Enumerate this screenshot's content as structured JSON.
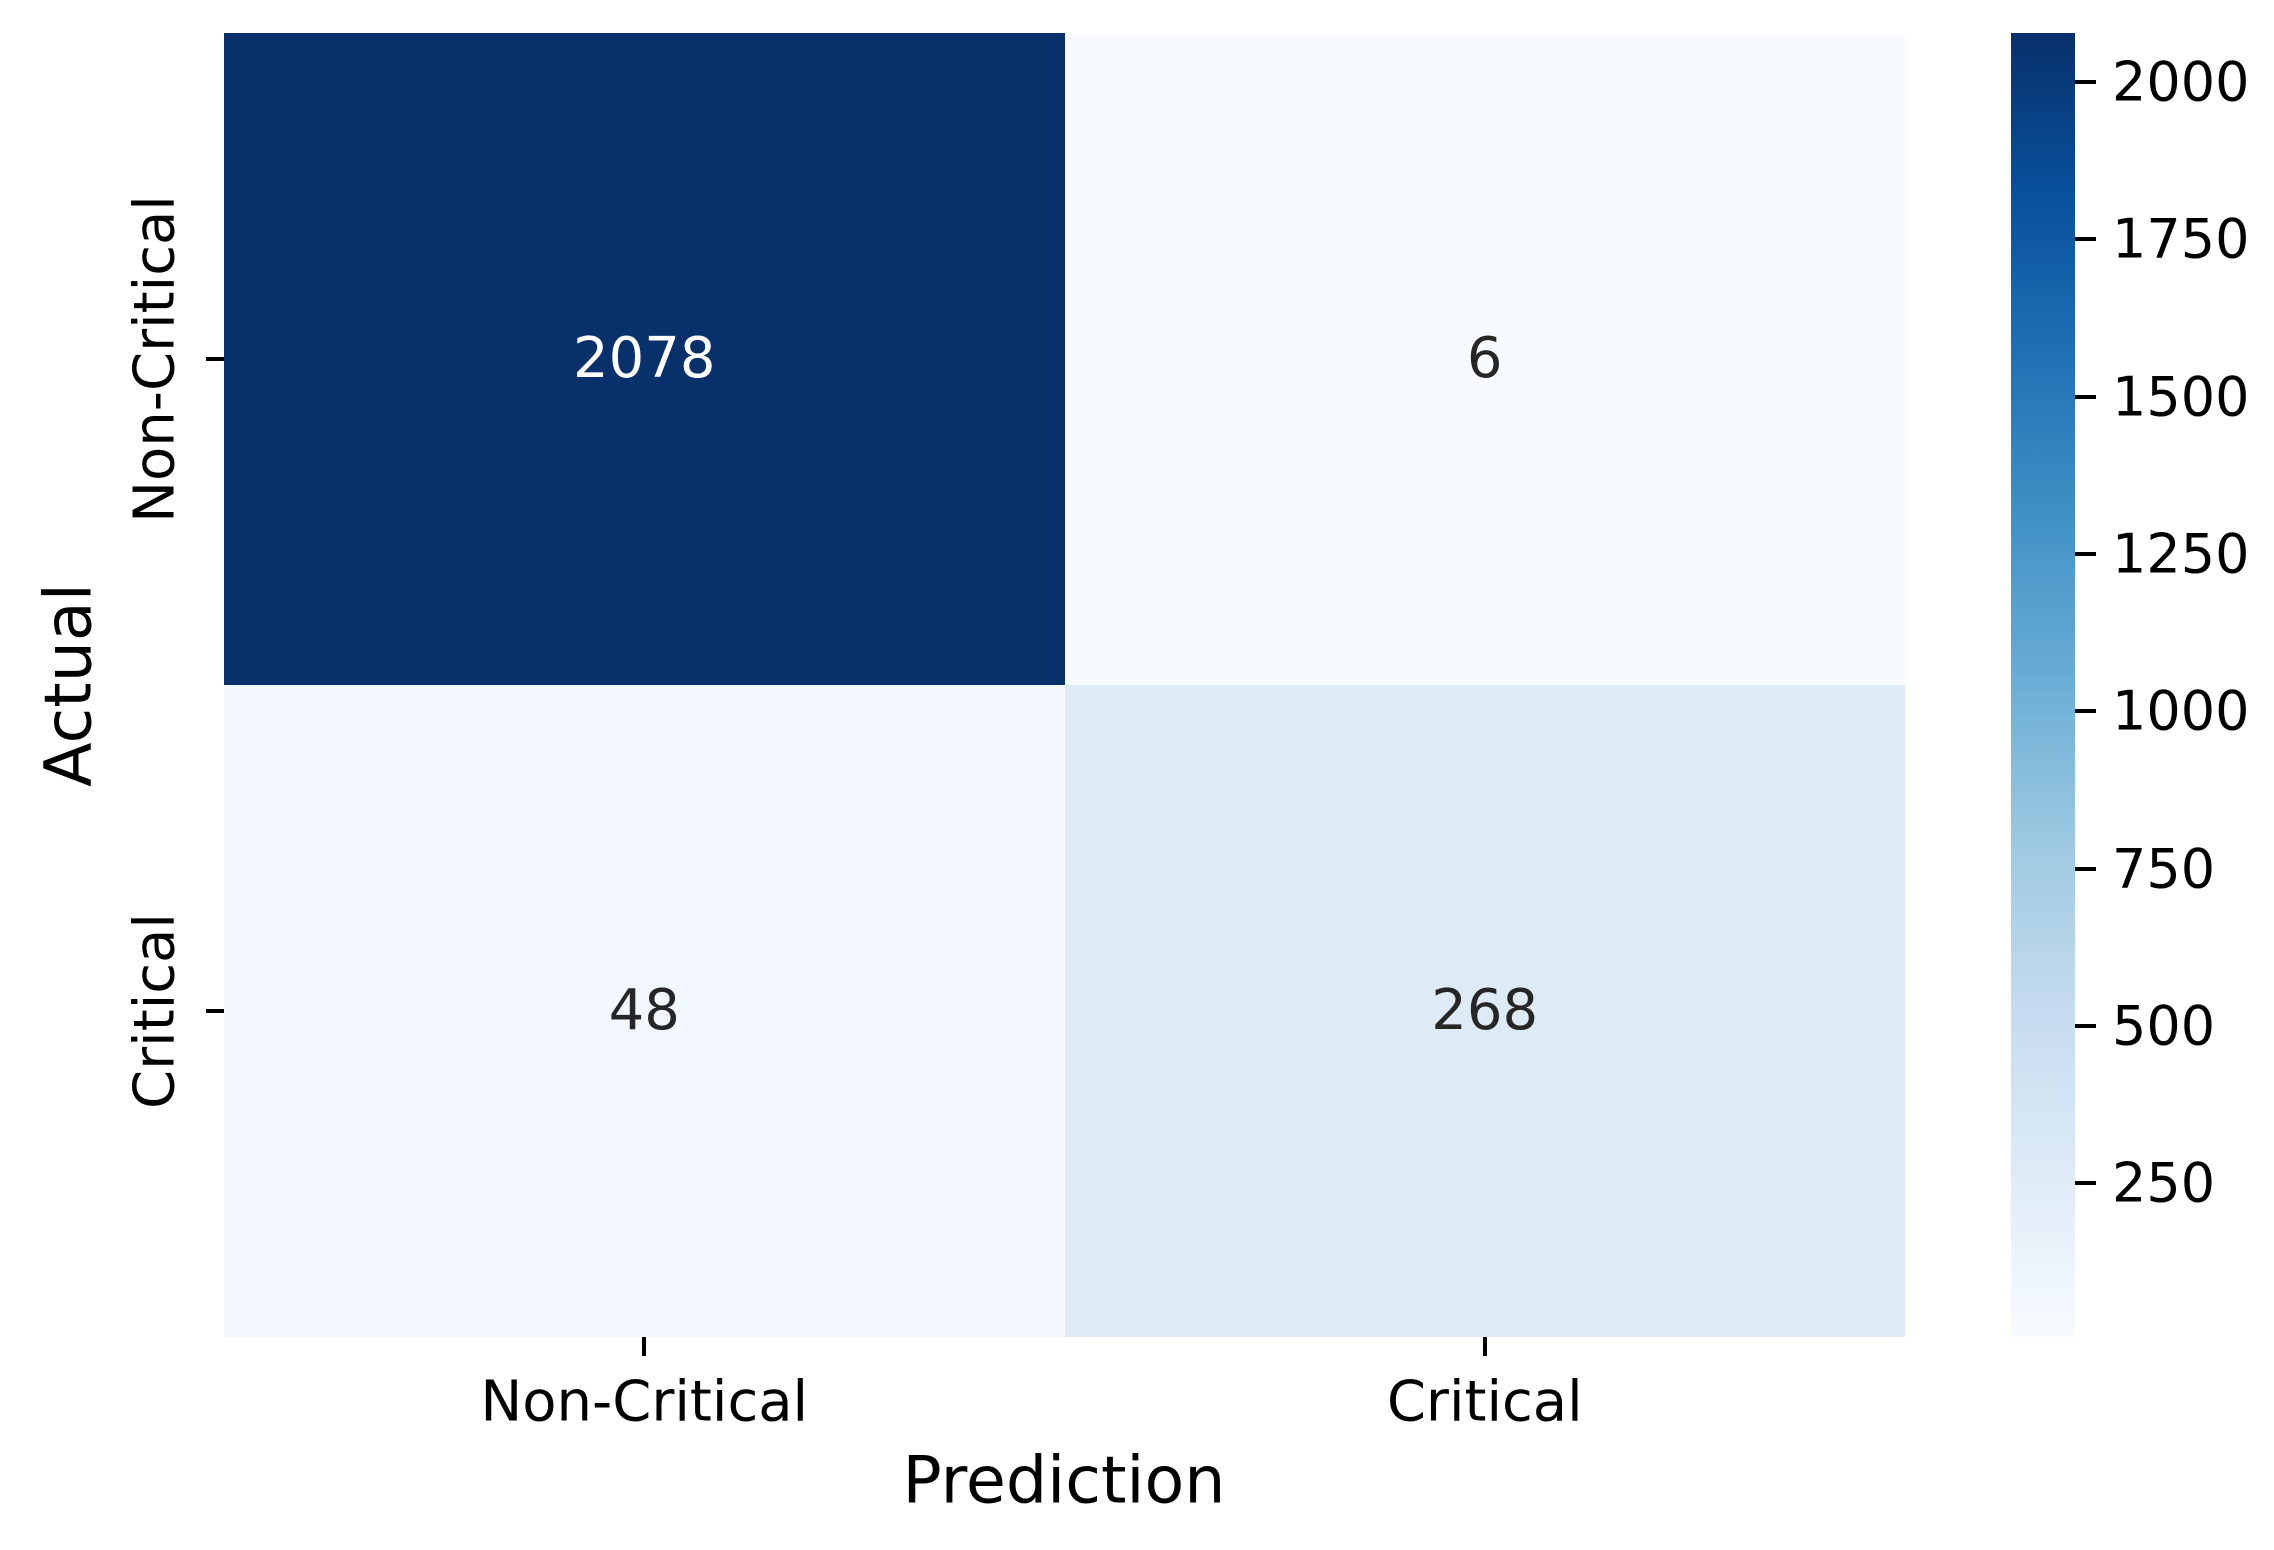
{
  "figure": {
    "background_color": "#ffffff",
    "text_color": "#000000"
  },
  "chart_data": {
    "type": "heatmap",
    "title": "",
    "xlabel": "Prediction",
    "ylabel": "Actual",
    "x_categories": [
      "Non-Critical",
      "Critical"
    ],
    "y_categories": [
      "Non-Critical",
      "Critical"
    ],
    "matrix": [
      [
        2078,
        6
      ],
      [
        48,
        268
      ]
    ],
    "annotations": [
      [
        "2078",
        "6"
      ],
      [
        "48",
        "268"
      ]
    ],
    "vmin": 6,
    "vmax": 2078,
    "colormap": "Blues",
    "colormap_stops": [
      "#f7fbff",
      "#deebf7",
      "#c6dbef",
      "#9ecae1",
      "#6baed6",
      "#4292c6",
      "#2171b5",
      "#08519c",
      "#08306b"
    ],
    "cell_colors": [
      [
        "#08306b",
        "#f7fbff"
      ],
      [
        "#f3f8fe",
        "#deebf7"
      ]
    ],
    "annotation_colors": [
      [
        "#ffffff",
        "#262626"
      ],
      [
        "#262626",
        "#262626"
      ]
    ],
    "colorbar_ticks": [
      250,
      500,
      750,
      1000,
      1250,
      1500,
      1750,
      2000
    ],
    "legend_position": "right-colorbar",
    "grid": false
  }
}
